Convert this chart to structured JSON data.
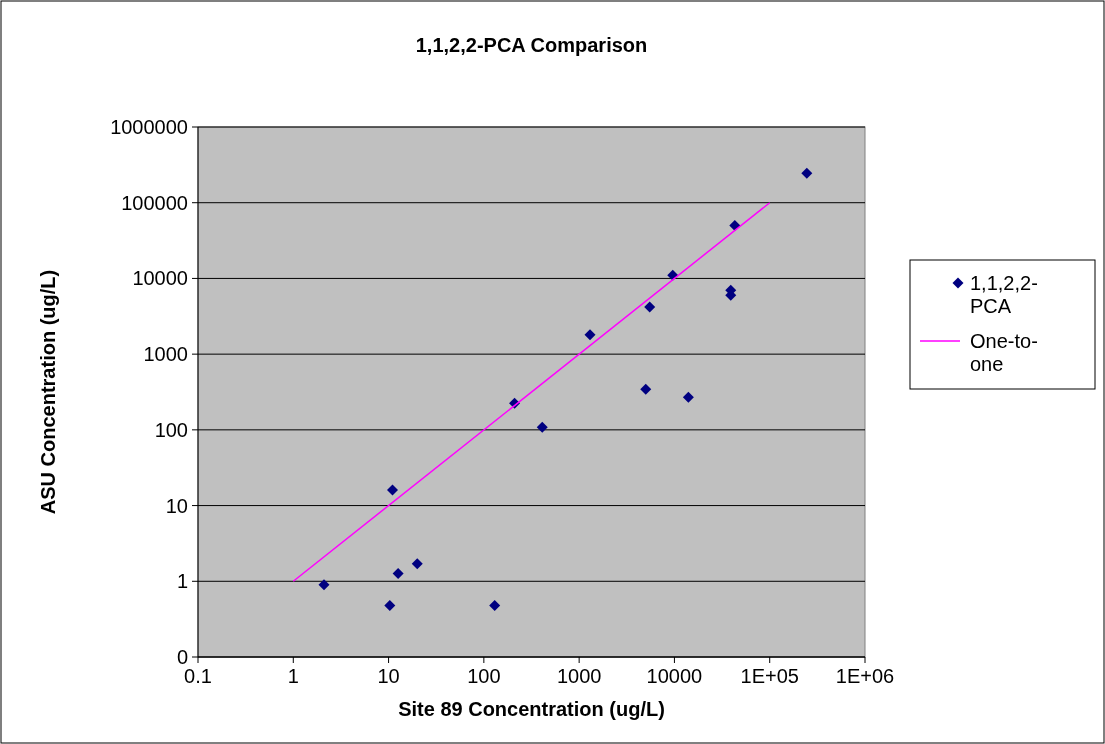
{
  "chart_data": {
    "type": "scatter",
    "title": "1,1,2,2-PCA Comparison",
    "xlabel": "Site 89 Concentration (ug/L)",
    "ylabel": "ASU Concentration (ug/L)",
    "log": "xy",
    "grid": "y",
    "legend": "right",
    "marker": "diamond",
    "xlim": [
      0.1,
      1000000
    ],
    "ylim": [
      0.1,
      1000000
    ],
    "xticks": [
      0.1,
      1,
      10,
      100,
      1000,
      10000,
      {
        "value": 100000,
        "label": "1E+05"
      },
      {
        "value": 1000000,
        "label": "1E+06"
      }
    ],
    "yticks": [
      {
        "value": 0.1,
        "label": "0"
      },
      1,
      10,
      100,
      1000,
      10000,
      100000,
      1000000
    ],
    "series": [
      {
        "name": "1,1,2,2-PCA",
        "type": "scatter",
        "color": "#000080",
        "x": [
          2.1,
          10.3,
          11,
          12.6,
          20,
          130,
          210,
          410,
          1300,
          5000,
          5500,
          9600,
          14000,
          39000,
          39000,
          43000,
          245000
        ],
        "values": [
          0.9,
          0.48,
          16,
          1.27,
          1.7,
          0.48,
          224,
          108,
          1800,
          345,
          4200,
          11000,
          270,
          6000,
          7000,
          50000,
          245000
        ]
      },
      {
        "name": "One-to-one",
        "type": "line",
        "color": "#ff00ff",
        "marker": "none",
        "x": [
          1,
          100000
        ],
        "values": [
          1,
          100000
        ]
      }
    ]
  }
}
